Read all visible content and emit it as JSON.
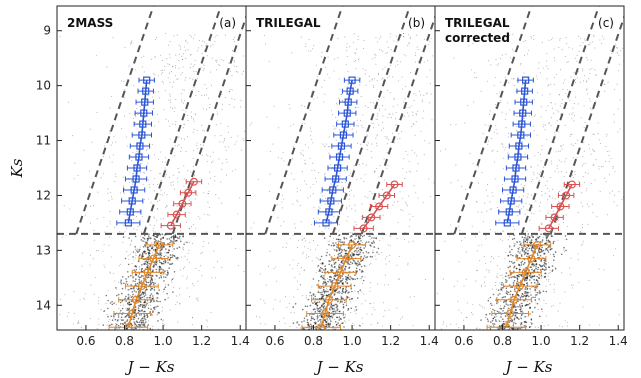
{
  "chart_data": {
    "type": "scatter",
    "xlabel": "J − Ks",
    "ylabel": "Ks",
    "xlim": [
      0.45,
      1.43
    ],
    "ylim": [
      14.45,
      8.55
    ],
    "x_ticks": [
      0.6,
      0.8,
      1.0,
      1.2,
      1.4
    ],
    "x_tick_labels": [
      "0.6",
      "0.8",
      "1.0",
      "1.2",
      "1.4"
    ],
    "y_ticks": [
      9,
      10,
      11,
      12,
      13,
      14
    ],
    "y_tick_labels": [
      "9",
      "10",
      "11",
      "12",
      "13",
      "14"
    ],
    "horizontal_line_ks": 12.7,
    "colors": {
      "blue": "#2b55d6",
      "red": "#d95050",
      "orange": "#e0872a",
      "dashed": "#555555",
      "stars": "#1a1a1a"
    },
    "panels": [
      {
        "name": "2MASS",
        "name_line2": "",
        "letter": "(a)",
        "boundary_lines": [
          {
            "x": [
              0.55,
              0.95
            ],
            "y": [
              12.7,
              8.55
            ]
          },
          {
            "x": [
              0.9,
              1.3
            ],
            "y": [
              12.7,
              8.55
            ]
          },
          {
            "x": [
              1.05,
              1.45
            ],
            "y": [
              12.7,
              8.55
            ]
          }
        ],
        "blue_sequence": {
          "y": [
            9.9,
            10.1,
            10.3,
            10.5,
            10.7,
            10.9,
            11.1,
            11.3,
            11.5,
            11.7,
            11.9,
            12.1,
            12.3,
            12.5
          ],
          "x": [
            0.915,
            0.91,
            0.905,
            0.9,
            0.895,
            0.89,
            0.88,
            0.875,
            0.865,
            0.86,
            0.85,
            0.84,
            0.83,
            0.82
          ],
          "xerr": [
            0.04,
            0.04,
            0.045,
            0.045,
            0.045,
            0.05,
            0.05,
            0.05,
            0.05,
            0.055,
            0.055,
            0.055,
            0.055,
            0.06
          ]
        },
        "red_sequence": {
          "y": [
            11.75,
            11.95,
            12.15,
            12.35,
            12.55
          ],
          "x": [
            1.16,
            1.13,
            1.1,
            1.07,
            1.04
          ],
          "xerr": [
            0.04,
            0.04,
            0.045,
            0.045,
            0.05
          ]
        },
        "orange_sequence": {
          "y": [
            12.9,
            13.15,
            13.4,
            13.65,
            13.9,
            14.15,
            14.4
          ],
          "x": [
            0.98,
            0.95,
            0.92,
            0.89,
            0.86,
            0.84,
            0.82
          ],
          "xerr": [
            0.07,
            0.075,
            0.08,
            0.085,
            0.09,
            0.095,
            0.1
          ]
        }
      },
      {
        "name": "TRILEGAL",
        "name_line2": "",
        "letter": "(b)",
        "boundary_lines": [
          {
            "x": [
              0.55,
              0.95
            ],
            "y": [
              12.7,
              8.55
            ]
          },
          {
            "x": [
              0.9,
              1.3
            ],
            "y": [
              12.7,
              8.55
            ]
          },
          {
            "x": [
              1.05,
              1.45
            ],
            "y": [
              12.7,
              8.55
            ]
          }
        ],
        "blue_sequence": {
          "y": [
            9.9,
            10.1,
            10.3,
            10.5,
            10.7,
            10.9,
            11.1,
            11.3,
            11.5,
            11.7,
            11.9,
            12.1,
            12.3,
            12.5
          ],
          "x": [
            1.0,
            0.99,
            0.98,
            0.975,
            0.965,
            0.955,
            0.945,
            0.935,
            0.925,
            0.915,
            0.9,
            0.89,
            0.88,
            0.865
          ],
          "xerr": [
            0.04,
            0.04,
            0.045,
            0.045,
            0.045,
            0.05,
            0.05,
            0.05,
            0.05,
            0.055,
            0.055,
            0.055,
            0.055,
            0.06
          ]
        },
        "red_sequence": {
          "y": [
            11.8,
            12.0,
            12.2,
            12.4,
            12.6
          ],
          "x": [
            1.22,
            1.18,
            1.14,
            1.1,
            1.06
          ],
          "xerr": [
            0.04,
            0.04,
            0.045,
            0.045,
            0.05
          ]
        },
        "orange_sequence": {
          "y": [
            12.9,
            13.15,
            13.4,
            13.65,
            13.9,
            14.15,
            14.4
          ],
          "x": [
            1.0,
            0.97,
            0.94,
            0.91,
            0.88,
            0.86,
            0.84
          ],
          "xerr": [
            0.07,
            0.075,
            0.08,
            0.085,
            0.09,
            0.095,
            0.1
          ]
        }
      },
      {
        "name": "TRILEGAL",
        "name_line2": "corrected",
        "letter": "(c)",
        "boundary_lines": [
          {
            "x": [
              0.55,
              0.95
            ],
            "y": [
              12.7,
              8.55
            ]
          },
          {
            "x": [
              0.9,
              1.3
            ],
            "y": [
              12.7,
              8.55
            ]
          },
          {
            "x": [
              1.05,
              1.45
            ],
            "y": [
              12.7,
              8.55
            ]
          }
        ],
        "blue_sequence": {
          "y": [
            9.9,
            10.1,
            10.3,
            10.5,
            10.7,
            10.9,
            11.1,
            11.3,
            11.5,
            11.7,
            11.9,
            12.1,
            12.3,
            12.5
          ],
          "x": [
            0.92,
            0.915,
            0.91,
            0.905,
            0.9,
            0.895,
            0.885,
            0.88,
            0.87,
            0.865,
            0.855,
            0.845,
            0.835,
            0.825
          ],
          "xerr": [
            0.04,
            0.04,
            0.045,
            0.045,
            0.045,
            0.05,
            0.05,
            0.05,
            0.05,
            0.055,
            0.055,
            0.055,
            0.055,
            0.06
          ]
        },
        "red_sequence": {
          "y": [
            11.8,
            12.0,
            12.2,
            12.4,
            12.6
          ],
          "x": [
            1.16,
            1.13,
            1.1,
            1.07,
            1.04
          ],
          "xerr": [
            0.04,
            0.04,
            0.045,
            0.045,
            0.05
          ]
        },
        "orange_sequence": {
          "y": [
            12.9,
            13.15,
            13.4,
            13.65,
            13.9,
            14.15,
            14.4
          ],
          "x": [
            0.98,
            0.95,
            0.92,
            0.89,
            0.86,
            0.84,
            0.82
          ],
          "xerr": [
            0.07,
            0.075,
            0.08,
            0.085,
            0.09,
            0.095,
            0.1
          ]
        }
      }
    ]
  }
}
